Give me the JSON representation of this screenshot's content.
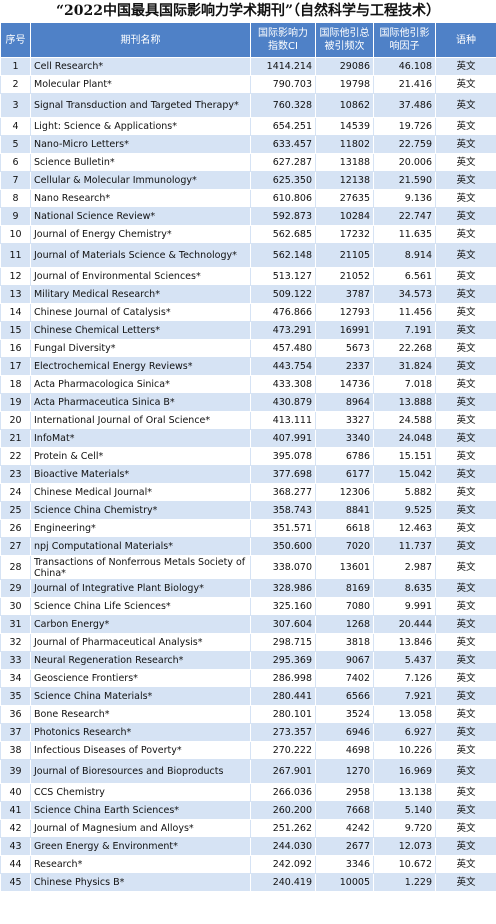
{
  "title": "“2022中国最具国际影响力学术期刊”（自然科学与工程技术）",
  "table": {
    "header": [
      "序号",
      "期刊名称",
      "国际影响力指数CI",
      "国际他引总被引频次",
      "国际他引影响因子",
      "语种"
    ],
    "rows": [
      [
        "1",
        "Cell Research*",
        "1414.214",
        "29086",
        "46.108",
        "英文"
      ],
      [
        "2",
        "Molecular Plant*",
        "790.703",
        "19798",
        "21.416",
        "英文"
      ],
      [
        "3",
        "Signal Transduction and Targeted Therapy*",
        "760.328",
        "10862",
        "37.486",
        "英文"
      ],
      [
        "4",
        "Light: Science & Applications*",
        "654.251",
        "14539",
        "19.726",
        "英文"
      ],
      [
        "5",
        "Nano-Micro Letters*",
        "633.457",
        "11802",
        "22.759",
        "英文"
      ],
      [
        "6",
        "Science Bulletin*",
        "627.287",
        "13188",
        "20.006",
        "英文"
      ],
      [
        "7",
        "Cellular & Molecular Immunology*",
        "625.350",
        "12138",
        "21.590",
        "英文"
      ],
      [
        "8",
        "Nano Research*",
        "610.806",
        "27635",
        "9.136",
        "英文"
      ],
      [
        "9",
        "National Science Review*",
        "592.873",
        "10284",
        "22.747",
        "英文"
      ],
      [
        "10",
        "Journal of Energy Chemistry*",
        "562.685",
        "17232",
        "11.635",
        "英文"
      ],
      [
        "11",
        "Journal of Materials Science & Technology*",
        "562.148",
        "21105",
        "8.914",
        "英文"
      ],
      [
        "12",
        "Journal of Environmental Sciences*",
        "513.127",
        "21052",
        "6.561",
        "英文"
      ],
      [
        "13",
        "Military Medical Research*",
        "509.122",
        "3787",
        "34.573",
        "英文"
      ],
      [
        "14",
        "Chinese Journal of Catalysis*",
        "476.866",
        "12793",
        "11.456",
        "英文"
      ],
      [
        "15",
        "Chinese Chemical Letters*",
        "473.291",
        "16991",
        "7.191",
        "英文"
      ],
      [
        "16",
        "Fungal Diversity*",
        "457.480",
        "5673",
        "22.268",
        "英文"
      ],
      [
        "17",
        "Electrochemical Energy Reviews*",
        "443.754",
        "2337",
        "31.824",
        "英文"
      ],
      [
        "18",
        "Acta Pharmacologica Sinica*",
        "433.308",
        "14736",
        "7.018",
        "英文"
      ],
      [
        "19",
        "Acta Pharmaceutica Sinica B*",
        "430.879",
        "8964",
        "13.888",
        "英文"
      ],
      [
        "20",
        "International Journal of Oral Science*",
        "413.111",
        "3327",
        "24.588",
        "英文"
      ],
      [
        "21",
        "InfoMat*",
        "407.991",
        "3340",
        "24.048",
        "英文"
      ],
      [
        "22",
        "Protein & Cell*",
        "395.078",
        "6786",
        "15.151",
        "英文"
      ],
      [
        "23",
        "Bioactive Materials*",
        "377.698",
        "6177",
        "15.042",
        "英文"
      ],
      [
        "24",
        "Chinese Medical Journal*",
        "368.277",
        "12306",
        "5.882",
        "英文"
      ],
      [
        "25",
        "Science China Chemistry*",
        "358.743",
        "8841",
        "9.525",
        "英文"
      ],
      [
        "26",
        "Engineering*",
        "351.571",
        "6618",
        "12.463",
        "英文"
      ],
      [
        "27",
        "npj Computational Materials*",
        "350.600",
        "7020",
        "11.737",
        "英文"
      ],
      [
        "28",
        "Transactions of Nonferrous Metals Society of China*",
        "338.070",
        "13601",
        "2.987",
        "英文"
      ],
      [
        "29",
        "Journal of Integrative Plant Biology*",
        "328.986",
        "8169",
        "8.635",
        "英文"
      ],
      [
        "30",
        "Science China Life Sciences*",
        "325.160",
        "7080",
        "9.991",
        "英文"
      ],
      [
        "31",
        "Carbon Energy*",
        "307.604",
        "1268",
        "20.444",
        "英文"
      ],
      [
        "32",
        "Journal of Pharmaceutical Analysis*",
        "298.715",
        "3818",
        "13.846",
        "英文"
      ],
      [
        "33",
        "Neural Regeneration Research*",
        "295.369",
        "9067",
        "5.437",
        "英文"
      ],
      [
        "34",
        "Geoscience Frontiers*",
        "286.998",
        "7402",
        "7.126",
        "英文"
      ],
      [
        "35",
        "Science China Materials*",
        "280.441",
        "6566",
        "7.921",
        "英文"
      ],
      [
        "36",
        "Bone Research*",
        "280.101",
        "3524",
        "13.058",
        "英文"
      ],
      [
        "37",
        "Photonics Research*",
        "273.357",
        "6946",
        "6.927",
        "英文"
      ],
      [
        "38",
        "Infectious Diseases of Poverty*",
        "270.222",
        "4698",
        "10.226",
        "英文"
      ],
      [
        "39",
        "Journal of Bioresources and Bioproducts",
        "267.901",
        "1270",
        "16.969",
        "英文"
      ],
      [
        "40",
        "CCS Chemistry",
        "266.036",
        "2958",
        "13.138",
        "英文"
      ],
      [
        "41",
        "Science China Earth Sciences*",
        "260.200",
        "7668",
        "5.140",
        "英文"
      ],
      [
        "42",
        "Journal of Magnesium and Alloys*",
        "251.262",
        "4242",
        "9.720",
        "英文"
      ],
      [
        "43",
        "Green Energy & Environment*",
        "244.030",
        "2677",
        "12.073",
        "英文"
      ],
      [
        "44",
        "Research*",
        "242.092",
        "3346",
        "10.672",
        "英文"
      ],
      [
        "45",
        "Chinese Physics B*",
        "240.419",
        "10005",
        "1.229",
        "英文"
      ]
    ]
  }
}
